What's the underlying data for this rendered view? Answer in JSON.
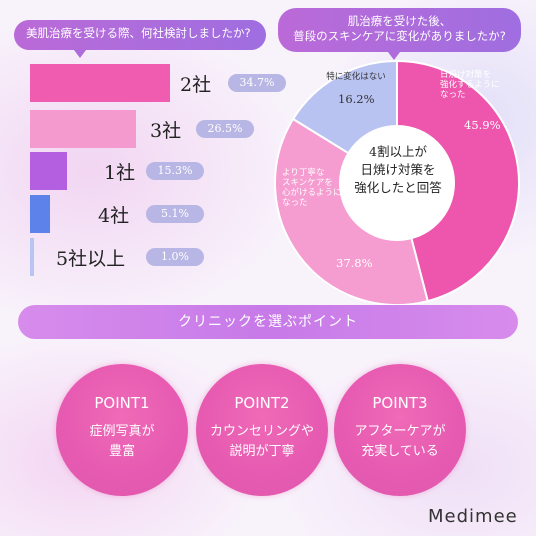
{
  "survey1": {
    "question": "美肌治療を受ける際、何社検討しましたか?",
    "items": [
      {
        "label": "2社",
        "value": 34.7,
        "pct": "34.7%",
        "color": "#ef5cb0"
      },
      {
        "label": "3社",
        "value": 26.5,
        "pct": "26.5%",
        "color": "#f59ace"
      },
      {
        "label": "1社",
        "value": 15.3,
        "pct": "15.3%",
        "color": "#b45fe0"
      },
      {
        "label": "4社",
        "value": 5.1,
        "pct": "5.1%",
        "color": "#5d83ea"
      },
      {
        "label": "5社以上",
        "value": 1.0,
        "pct": "1.0%",
        "color": "#b8c4f3"
      }
    ]
  },
  "survey2": {
    "question_line1": "肌治療を受けた後、",
    "question_line2": "普段のスキンケアに変化がありましたか?",
    "center_line1": "4割以上が",
    "center_line2": "日焼け対策を",
    "center_line3": "強化したと回答",
    "slices": [
      {
        "label": "日焼け対策を強化するようになった",
        "label_line1": "日焼け対策を",
        "label_line2": "強化するように",
        "label_line3": "なった",
        "value": 45.9,
        "pct": "45.9%",
        "color": "#ee55ad"
      },
      {
        "label": "より丁寧なスキンケアを心がけるようになった",
        "label_line1": "より丁寧な",
        "label_line2": "スキンケアを",
        "label_line3": "心がけるように",
        "label_line4": "なった",
        "value": 37.8,
        "pct": "37.8%",
        "color": "#f59cd0"
      },
      {
        "label": "特に変化はない",
        "value": 16.2,
        "pct": "16.2%",
        "color": "#b9c3f2"
      }
    ]
  },
  "banner": {
    "title": "クリニックを選ぶポイント"
  },
  "points": [
    {
      "title": "POINT1",
      "line1": "症例写真が",
      "line2": "豊富"
    },
    {
      "title": "POINT2",
      "line1": "カウンセリングや",
      "line2": "説明が丁寧"
    },
    {
      "title": "POINT3",
      "line1": "アフターケアが",
      "line2": "充実している"
    }
  ],
  "brand": {
    "name": "Medimee"
  }
}
